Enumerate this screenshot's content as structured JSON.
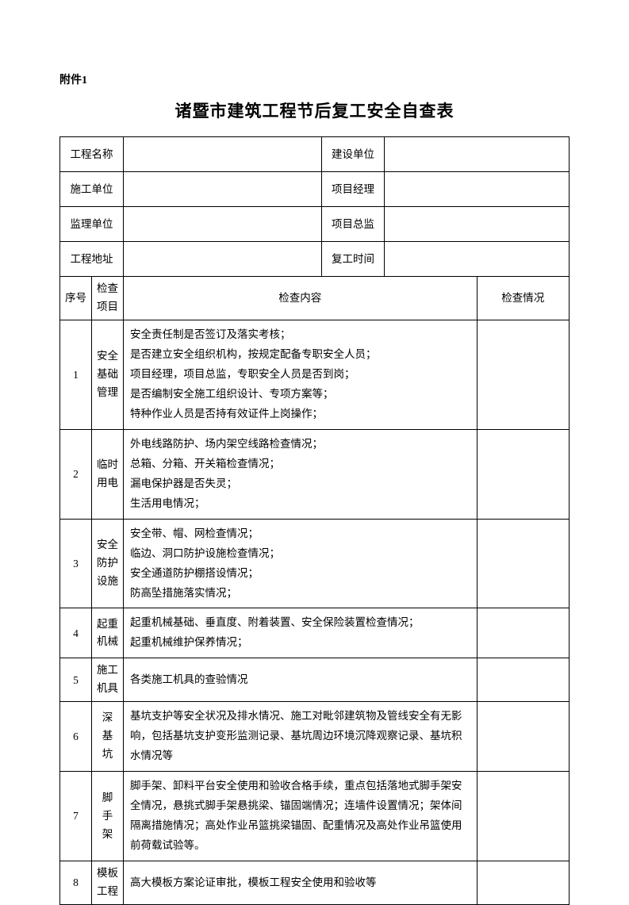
{
  "attachment": "附件1",
  "title": "诸暨市建筑工程节后复工安全自查表",
  "info_rows": [
    {
      "label1": "工程名称",
      "label2": "建设单位"
    },
    {
      "label1": "施工单位",
      "label2": "项目经理"
    },
    {
      "label1": "监理单位",
      "label2": "项目总监"
    },
    {
      "label1": "工程地址",
      "label2": "复工时间"
    }
  ],
  "header": {
    "seq": "序号",
    "item": "检查\n项目",
    "content": "检查内容",
    "status": "检查情况"
  },
  "rows": [
    {
      "seq": "1",
      "item": "安全\n基础\n管理",
      "content": "安全责任制是否签订及落实考核；\n是否建立安全组织机构，按规定配备专职安全人员；\n项目经理，项目总监，专职安全人员是否到岗；\n是否编制安全施工组织设计、专项方案等；\n特种作业人员是否持有效证件上岗操作；"
    },
    {
      "seq": "2",
      "item": "临时\n用电",
      "content": "外电线路防护、场内架空线路检查情况；\n总箱、分箱、开关箱检查情况；\n漏电保护器是否失灵；\n生活用电情况；"
    },
    {
      "seq": "3",
      "item": "安全\n防护\n设施",
      "content": "安全带、帽、网检查情况；\n临边、洞口防护设施检查情况；\n安全通道防护棚搭设情况；\n防高坠措施落实情况；"
    },
    {
      "seq": "4",
      "item": "起重\n机械",
      "content": "起重机械基础、垂直度、附着装置、安全保险装置检查情况；\n起重机械维护保养情况；"
    },
    {
      "seq": "5",
      "item": "施工\n机具",
      "content": "各类施工机具的查验情况"
    },
    {
      "seq": "6",
      "item": "深\n基\n坑",
      "content": "基坑支护等安全状况及排水情况、施工对毗邻建筑物及管线安全有无影响，包括基坑支护变形监测记录、基坑周边环境沉降观察记录、基坑积水情况等"
    },
    {
      "seq": "7",
      "item": "脚\n手\n架",
      "content": "脚手架、卸料平台安全使用和验收合格手续，重点包括落地式脚手架安全情况，悬挑式脚手架悬挑梁、锚固端情况；连墙件设置情况；架体间隔离措施情况；高处作业吊篮挑梁锚固、配重情况及高处作业吊篮使用前荷载试验等。"
    },
    {
      "seq": "8",
      "item": "模板\n工程",
      "content": "高大模板方案论证审批，模板工程安全使用和验收等"
    }
  ]
}
